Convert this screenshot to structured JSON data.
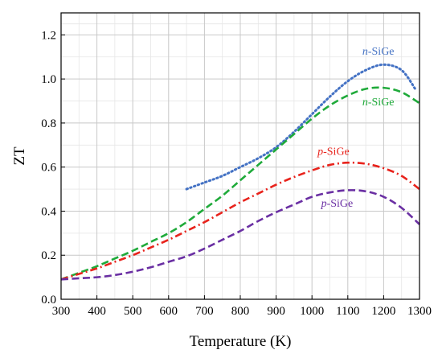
{
  "chart_data": {
    "type": "line",
    "xlabel": "Temperature (K)",
    "ylabel": "ZT",
    "xlim": [
      300,
      1300
    ],
    "ylim": [
      0.0,
      1.3
    ],
    "xticks": [
      300,
      400,
      500,
      600,
      700,
      800,
      900,
      1000,
      1100,
      1200,
      1300
    ],
    "yticks": [
      0.0,
      0.2,
      0.4,
      0.6,
      0.8,
      1.0,
      1.2
    ],
    "grid": true,
    "minor_grid": true,
    "series": [
      {
        "name_prefix": "n",
        "name_suffix": "-SiGe",
        "color": "#4472c4",
        "style": "dotted",
        "x": [
          650,
          700,
          750,
          800,
          850,
          900,
          950,
          1000,
          1050,
          1100,
          1150,
          1200,
          1250,
          1290
        ],
        "y": [
          0.5,
          0.53,
          0.56,
          0.6,
          0.64,
          0.69,
          0.76,
          0.84,
          0.92,
          0.99,
          1.04,
          1.065,
          1.04,
          0.95
        ]
      },
      {
        "name_prefix": "n",
        "name_suffix": "-SiGe",
        "color": "#1faa3a",
        "style": "dashed",
        "x": [
          300,
          350,
          400,
          450,
          500,
          550,
          600,
          650,
          700,
          750,
          800,
          850,
          900,
          950,
          1000,
          1050,
          1100,
          1150,
          1200,
          1250,
          1300
        ],
        "y": [
          0.09,
          0.12,
          0.15,
          0.185,
          0.22,
          0.26,
          0.3,
          0.35,
          0.41,
          0.47,
          0.54,
          0.61,
          0.68,
          0.75,
          0.82,
          0.88,
          0.925,
          0.955,
          0.96,
          0.94,
          0.89
        ]
      },
      {
        "name_prefix": "p",
        "name_suffix": "-SiGe",
        "color": "#e8231c",
        "style": "dashdot",
        "x": [
          300,
          350,
          400,
          450,
          500,
          550,
          600,
          650,
          700,
          750,
          800,
          850,
          900,
          950,
          1000,
          1050,
          1100,
          1150,
          1200,
          1250,
          1300
        ],
        "y": [
          0.09,
          0.115,
          0.14,
          0.17,
          0.2,
          0.235,
          0.27,
          0.31,
          0.35,
          0.395,
          0.44,
          0.48,
          0.52,
          0.555,
          0.585,
          0.61,
          0.62,
          0.615,
          0.595,
          0.56,
          0.5
        ]
      },
      {
        "name_prefix": "p",
        "name_suffix": "-SiGe",
        "color": "#6a2fa3",
        "style": "dashed",
        "x": [
          300,
          350,
          400,
          450,
          500,
          550,
          600,
          650,
          700,
          750,
          800,
          850,
          900,
          950,
          1000,
          1050,
          1100,
          1150,
          1200,
          1250,
          1300
        ],
        "y": [
          0.09,
          0.095,
          0.1,
          0.11,
          0.125,
          0.145,
          0.17,
          0.195,
          0.23,
          0.27,
          0.31,
          0.355,
          0.395,
          0.43,
          0.465,
          0.485,
          0.495,
          0.49,
          0.465,
          0.415,
          0.34
        ]
      }
    ],
    "annotations": [
      {
        "prefix": "n",
        "suffix": "-SiGe",
        "color": "#4472c4",
        "x": 1185,
        "y": 1.11
      },
      {
        "prefix": "n",
        "suffix": "-SiGe",
        "color": "#1faa3a",
        "x": 1185,
        "y": 0.88
      },
      {
        "prefix": "p",
        "suffix": "-SiGe",
        "color": "#e8231c",
        "x": 1060,
        "y": 0.655
      },
      {
        "prefix": "p",
        "suffix": "-SiGe",
        "color": "#6a2fa3",
        "x": 1070,
        "y": 0.42
      }
    ]
  }
}
